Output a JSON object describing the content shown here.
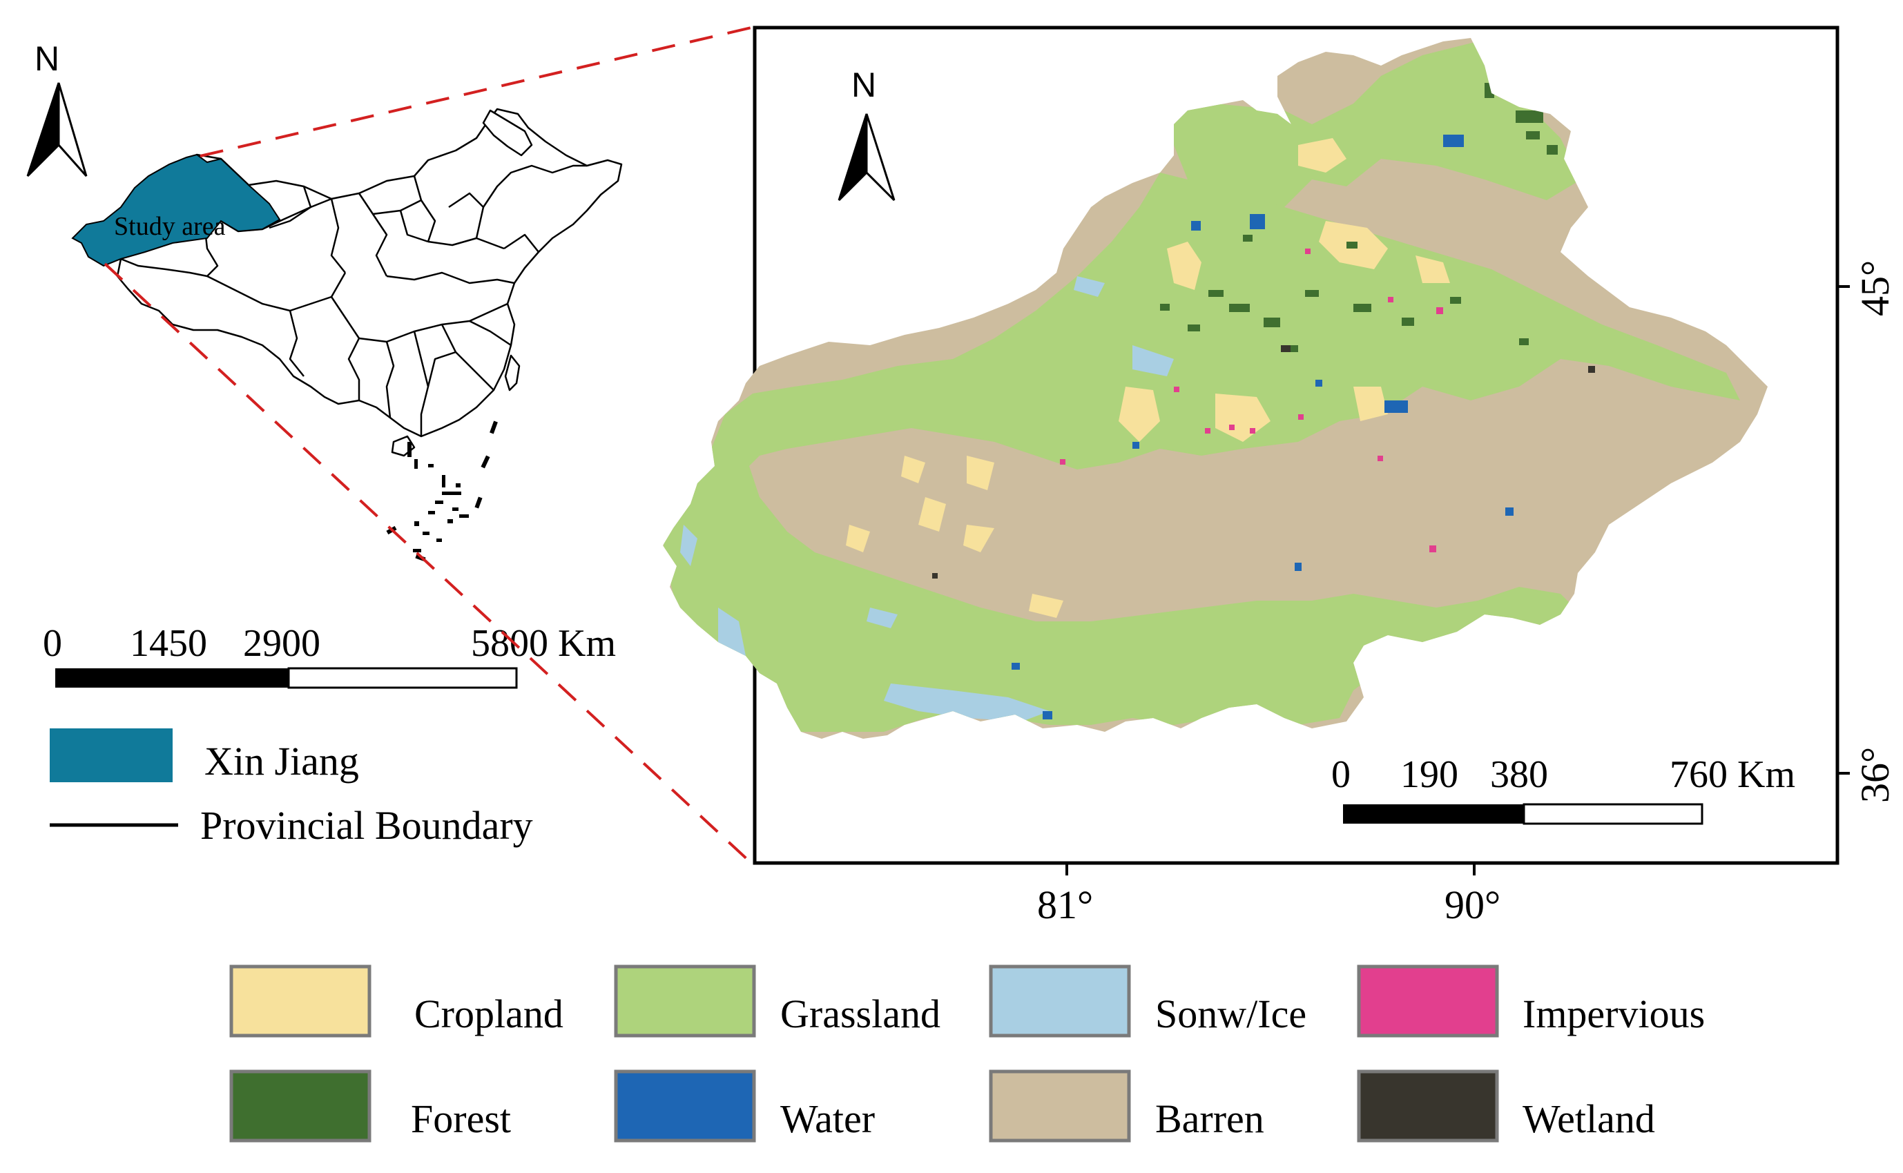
{
  "inset_map": {
    "north_label": "N",
    "study_area_label": "Study area",
    "study_area_color": "#107a9a",
    "scale_bar": {
      "labels": [
        "0",
        "1450",
        "2900",
        "5800 Km"
      ]
    },
    "legend": [
      {
        "label": "Xin Jiang",
        "color": "#107a9a",
        "symbol": "box"
      },
      {
        "label": "Provincial Boundary",
        "color": "#000000",
        "symbol": "line"
      }
    ]
  },
  "main_map": {
    "north_label": "N",
    "scale_bar": {
      "labels": [
        "0",
        "190",
        "380",
        "760 Km"
      ]
    },
    "x_ticks": [
      "81°",
      "90°"
    ],
    "y_ticks": [
      "45°",
      "36°"
    ],
    "callout_line_color": "#d32020"
  },
  "land_cover_legend": [
    {
      "label": "Cropland",
      "color": "#f7e19c"
    },
    {
      "label": "Grassland",
      "color": "#aed37c"
    },
    {
      "label": "Sonw/Ice",
      "color": "#a9cfe3"
    },
    {
      "label": "Impervious",
      "color": "#e23f8e"
    },
    {
      "label": "Forest",
      "color": "#3f6f2f"
    },
    {
      "label": "Water",
      "color": "#1e66b4"
    },
    {
      "label": "Barren",
      "color": "#cdbd9f"
    },
    {
      "label": "Wetland",
      "color": "#38352d"
    }
  ]
}
